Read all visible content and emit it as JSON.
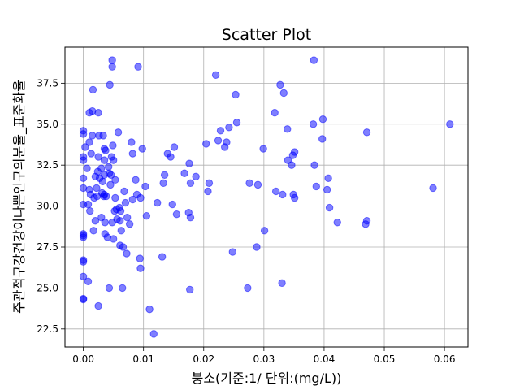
{
  "chart_data": {
    "type": "scatter",
    "title": "Scatter Plot",
    "xlabel": "붕소(기준:1/ 단위:(mg/L))",
    "ylabel": "주관적구강건강이나쁜인구의분율_표준화율",
    "xlim": [
      -0.00305,
      0.0639
    ],
    "ylim": [
      21.4,
      39.7
    ],
    "xticks": [
      0.0,
      0.01,
      0.02,
      0.03,
      0.04,
      0.05,
      0.06
    ],
    "xtick_labels": [
      "0.00",
      "0.01",
      "0.02",
      "0.03",
      "0.04",
      "0.05",
      "0.06"
    ],
    "yticks": [
      22.5,
      25.0,
      27.5,
      30.0,
      32.5,
      35.0,
      37.5
    ],
    "ytick_labels": [
      "22.5",
      "25.0",
      "27.5",
      "30.0",
      "32.5",
      "35.0",
      "37.5"
    ],
    "grid": true,
    "marker_color": "#0000ff",
    "marker_alpha": 0.5,
    "points": [
      [
        0.0,
        34.6
      ],
      [
        0.0,
        34.4
      ],
      [
        0.0,
        33.0
      ],
      [
        0.0,
        32.8
      ],
      [
        0.0,
        31.7
      ],
      [
        0.0,
        31.1
      ],
      [
        0.0,
        30.1
      ],
      [
        0.0,
        28.3
      ],
      [
        0.0,
        28.2
      ],
      [
        0.0,
        28.1
      ],
      [
        0.0,
        26.7
      ],
      [
        0.0,
        26.6
      ],
      [
        0.0,
        25.7
      ],
      [
        0.0,
        24.35
      ],
      [
        0.0,
        24.3
      ],
      [
        0.0003,
        33.6
      ],
      [
        0.0006,
        32.3
      ],
      [
        0.0008,
        25.4
      ],
      [
        0.0008,
        30.1
      ],
      [
        0.001,
        35.7
      ],
      [
        0.001,
        33.9
      ],
      [
        0.001,
        31.0
      ],
      [
        0.0011,
        29.7
      ],
      [
        0.0012,
        30.7
      ],
      [
        0.0013,
        33.2
      ],
      [
        0.0015,
        35.8
      ],
      [
        0.0015,
        34.3
      ],
      [
        0.0016,
        37.1
      ],
      [
        0.0017,
        28.5
      ],
      [
        0.0018,
        30.5
      ],
      [
        0.002,
        29.1
      ],
      [
        0.002,
        31.8
      ],
      [
        0.0022,
        31.1
      ],
      [
        0.0023,
        30.6
      ],
      [
        0.0024,
        32.1
      ],
      [
        0.0025,
        33.0
      ],
      [
        0.0025,
        23.9
      ],
      [
        0.0025,
        35.7
      ],
      [
        0.0026,
        34.3
      ],
      [
        0.0027,
        31.7
      ],
      [
        0.003,
        32.3
      ],
      [
        0.003,
        29.3
      ],
      [
        0.0031,
        30.8
      ],
      [
        0.0032,
        31.5
      ],
      [
        0.0033,
        34.3
      ],
      [
        0.0034,
        30.6
      ],
      [
        0.0035,
        33.5
      ],
      [
        0.0035,
        32.8
      ],
      [
        0.0035,
        31.9
      ],
      [
        0.0035,
        30.7
      ],
      [
        0.0036,
        28.3
      ],
      [
        0.0036,
        29.0
      ],
      [
        0.0037,
        33.4
      ],
      [
        0.0038,
        30.6
      ],
      [
        0.004,
        28.1
      ],
      [
        0.0042,
        32.4
      ],
      [
        0.0043,
        25.0
      ],
      [
        0.0043,
        32.0
      ],
      [
        0.0044,
        37.4
      ],
      [
        0.0045,
        31.3
      ],
      [
        0.0046,
        31.9
      ],
      [
        0.0047,
        33.0
      ],
      [
        0.0048,
        29.0
      ],
      [
        0.0048,
        38.9
      ],
      [
        0.0048,
        38.5
      ],
      [
        0.0049,
        33.7
      ],
      [
        0.005,
        32.8
      ],
      [
        0.005,
        28.0
      ],
      [
        0.0052,
        29.7
      ],
      [
        0.0053,
        30.5
      ],
      [
        0.0053,
        31.6
      ],
      [
        0.0055,
        29.8
      ],
      [
        0.0056,
        29.2
      ],
      [
        0.0058,
        34.5
      ],
      [
        0.006,
        29.9
      ],
      [
        0.0061,
        29.1
      ],
      [
        0.0061,
        27.6
      ],
      [
        0.0062,
        29.7
      ],
      [
        0.0063,
        28.5
      ],
      [
        0.0065,
        25.0
      ],
      [
        0.0066,
        27.5
      ],
      [
        0.0068,
        30.9
      ],
      [
        0.007,
        30.2
      ],
      [
        0.0072,
        27.1
      ],
      [
        0.0073,
        29.3
      ],
      [
        0.0077,
        28.9
      ],
      [
        0.008,
        33.9
      ],
      [
        0.0082,
        30.4
      ],
      [
        0.0082,
        33.2
      ],
      [
        0.0087,
        31.6
      ],
      [
        0.0089,
        30.7
      ],
      [
        0.0091,
        38.5
      ],
      [
        0.0094,
        26.8
      ],
      [
        0.0095,
        30.5
      ],
      [
        0.0095,
        26.2
      ],
      [
        0.0098,
        33.5
      ],
      [
        0.0103,
        31.2
      ],
      [
        0.0105,
        29.4
      ],
      [
        0.011,
        23.7
      ],
      [
        0.0117,
        22.2
      ],
      [
        0.0123,
        30.2
      ],
      [
        0.0131,
        26.9
      ],
      [
        0.0133,
        31.4
      ],
      [
        0.0135,
        31.9
      ],
      [
        0.014,
        33.2
      ],
      [
        0.0145,
        33.0
      ],
      [
        0.0148,
        30.1
      ],
      [
        0.0151,
        33.6
      ],
      [
        0.0155,
        29.5
      ],
      [
        0.0168,
        32.0
      ],
      [
        0.0175,
        29.6
      ],
      [
        0.0176,
        32.6
      ],
      [
        0.0177,
        24.9
      ],
      [
        0.0178,
        31.4
      ],
      [
        0.0178,
        29.3
      ],
      [
        0.0187,
        31.8
      ],
      [
        0.0204,
        33.8
      ],
      [
        0.0207,
        30.9
      ],
      [
        0.0209,
        31.4
      ],
      [
        0.022,
        38.0
      ],
      [
        0.0224,
        34.0
      ],
      [
        0.0228,
        34.6
      ],
      [
        0.0235,
        33.6
      ],
      [
        0.0238,
        33.9
      ],
      [
        0.0242,
        34.8
      ],
      [
        0.0248,
        27.2
      ],
      [
        0.0253,
        36.8
      ],
      [
        0.0255,
        35.1
      ],
      [
        0.0273,
        25.0
      ],
      [
        0.0276,
        31.4
      ],
      [
        0.0288,
        27.5
      ],
      [
        0.029,
        31.3
      ],
      [
        0.0299,
        33.5
      ],
      [
        0.0301,
        28.5
      ],
      [
        0.0318,
        35.7
      ],
      [
        0.032,
        30.9
      ],
      [
        0.0327,
        37.4
      ],
      [
        0.033,
        25.3
      ],
      [
        0.0331,
        30.7
      ],
      [
        0.0333,
        36.9
      ],
      [
        0.0339,
        34.7
      ],
      [
        0.034,
        32.8
      ],
      [
        0.0346,
        32.5
      ],
      [
        0.0348,
        33.1
      ],
      [
        0.0349,
        30.7
      ],
      [
        0.0351,
        30.5
      ],
      [
        0.0351,
        33.3
      ],
      [
        0.0382,
        35.0
      ],
      [
        0.0383,
        38.9
      ],
      [
        0.0384,
        32.5
      ],
      [
        0.0387,
        31.2
      ],
      [
        0.0397,
        34.1
      ],
      [
        0.0398,
        35.3
      ],
      [
        0.0405,
        31.0
      ],
      [
        0.0407,
        31.7
      ],
      [
        0.0409,
        29.9
      ],
      [
        0.0422,
        29.0
      ],
      [
        0.0469,
        28.9
      ],
      [
        0.0471,
        34.5
      ],
      [
        0.0471,
        29.1
      ],
      [
        0.0581,
        31.1
      ],
      [
        0.0609,
        35.0
      ]
    ]
  }
}
